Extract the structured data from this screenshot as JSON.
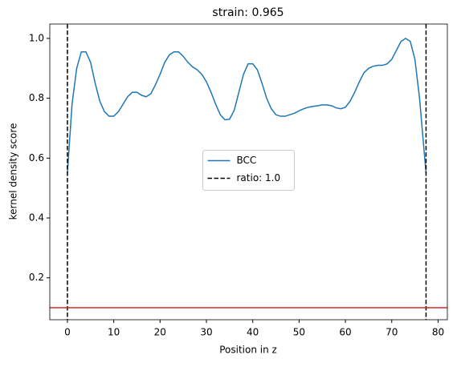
{
  "chart_data": {
    "type": "line",
    "title": "strain: 0.965",
    "xlabel": "Position in z",
    "ylabel": "kernel density score",
    "x": [
      0,
      1,
      2,
      3,
      4,
      5,
      6,
      7,
      8,
      9,
      10,
      11,
      12,
      13,
      14,
      15,
      16,
      17,
      18,
      19,
      20,
      21,
      22,
      23,
      24,
      25,
      26,
      27,
      28,
      29,
      30,
      31,
      32,
      33,
      34,
      35,
      36,
      37,
      38,
      39,
      40,
      41,
      42,
      43,
      44,
      45,
      46,
      47,
      48,
      49,
      50,
      51,
      52,
      53,
      54,
      55,
      56,
      57,
      58,
      59,
      60,
      61,
      62,
      63,
      64,
      65,
      66,
      67,
      68,
      69,
      70,
      71,
      72,
      73,
      74,
      75,
      76,
      77,
      77.4
    ],
    "series": [
      {
        "name": "BCC",
        "color": "#1f77b4",
        "values": [
          0.55,
          0.78,
          0.9,
          0.955,
          0.955,
          0.92,
          0.85,
          0.79,
          0.755,
          0.74,
          0.74,
          0.755,
          0.78,
          0.805,
          0.82,
          0.82,
          0.81,
          0.805,
          0.815,
          0.845,
          0.88,
          0.92,
          0.945,
          0.955,
          0.955,
          0.94,
          0.92,
          0.905,
          0.895,
          0.88,
          0.855,
          0.82,
          0.78,
          0.745,
          0.728,
          0.73,
          0.76,
          0.82,
          0.88,
          0.915,
          0.915,
          0.895,
          0.85,
          0.8,
          0.765,
          0.745,
          0.74,
          0.74,
          0.745,
          0.75,
          0.758,
          0.765,
          0.77,
          0.773,
          0.775,
          0.778,
          0.778,
          0.775,
          0.768,
          0.765,
          0.77,
          0.79,
          0.82,
          0.855,
          0.885,
          0.9,
          0.907,
          0.91,
          0.91,
          0.915,
          0.93,
          0.96,
          0.99,
          1.0,
          0.99,
          0.93,
          0.8,
          0.62,
          0.55
        ]
      }
    ],
    "vlines": {
      "name": "ratio: 1.0",
      "color": "#000000",
      "values": [
        0,
        77.4
      ]
    },
    "hline": {
      "color": "#d62728",
      "value": 0.1
    },
    "xlim": [
      -3.8,
      82
    ],
    "ylim": [
      0.06,
      1.048
    ],
    "xticks": [
      0,
      10,
      20,
      30,
      40,
      50,
      60,
      70,
      80
    ],
    "yticks": [
      0.2,
      0.4,
      0.6,
      0.8,
      {
        "value": 1.0,
        "label": "1.0"
      }
    ],
    "legend": "center"
  }
}
